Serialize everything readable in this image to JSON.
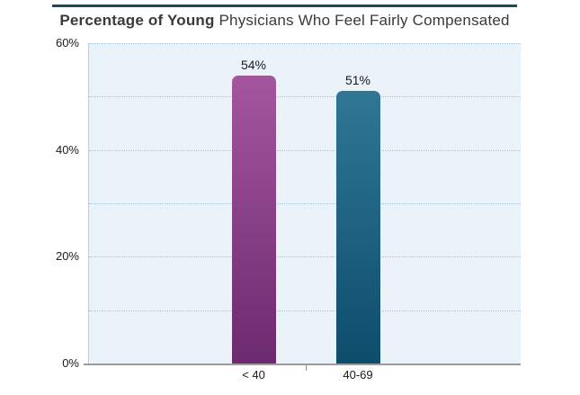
{
  "header": {
    "title_bold": "Percentage of Young",
    "title_rest": " Physicians Who Feel Fairly Compensated"
  },
  "colors": {
    "title_rule": "#1a4a5e",
    "plot_background": "#eaf3fa",
    "gridline": "#a5c2d6",
    "axis_line": "#9b9b9b",
    "text": "#1a1a1a"
  },
  "chart_data": {
    "type": "bar",
    "title": "Percentage of Young Physicians Who Feel Fairly Compensated",
    "categories": [
      "< 40",
      "40-69"
    ],
    "values": [
      54,
      51
    ],
    "value_labels": [
      "54%",
      "51%"
    ],
    "xlabel": "",
    "ylabel": "",
    "ylim": [
      0,
      60
    ],
    "ytick_values": [
      60,
      40,
      20,
      0
    ],
    "ytick_labels": [
      "60%",
      "40%",
      "20%",
      "0%"
    ],
    "gridline_step": 10,
    "grid_style": "dotted-horizontal",
    "legend": "none",
    "bar_gradients": [
      {
        "top": "#a4569e",
        "bottom": "#6c2a6f"
      },
      {
        "top": "#2f7795",
        "bottom": "#0e4c6c"
      }
    ]
  }
}
